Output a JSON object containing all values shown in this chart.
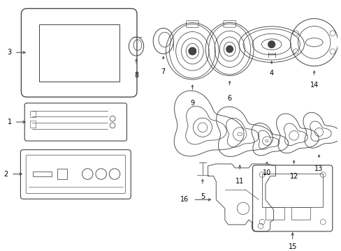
{
  "bg_color": "#ffffff",
  "line_color": "#444444",
  "text_color": "#000000",
  "figsize": [
    4.89,
    3.6
  ],
  "dpi": 100
}
